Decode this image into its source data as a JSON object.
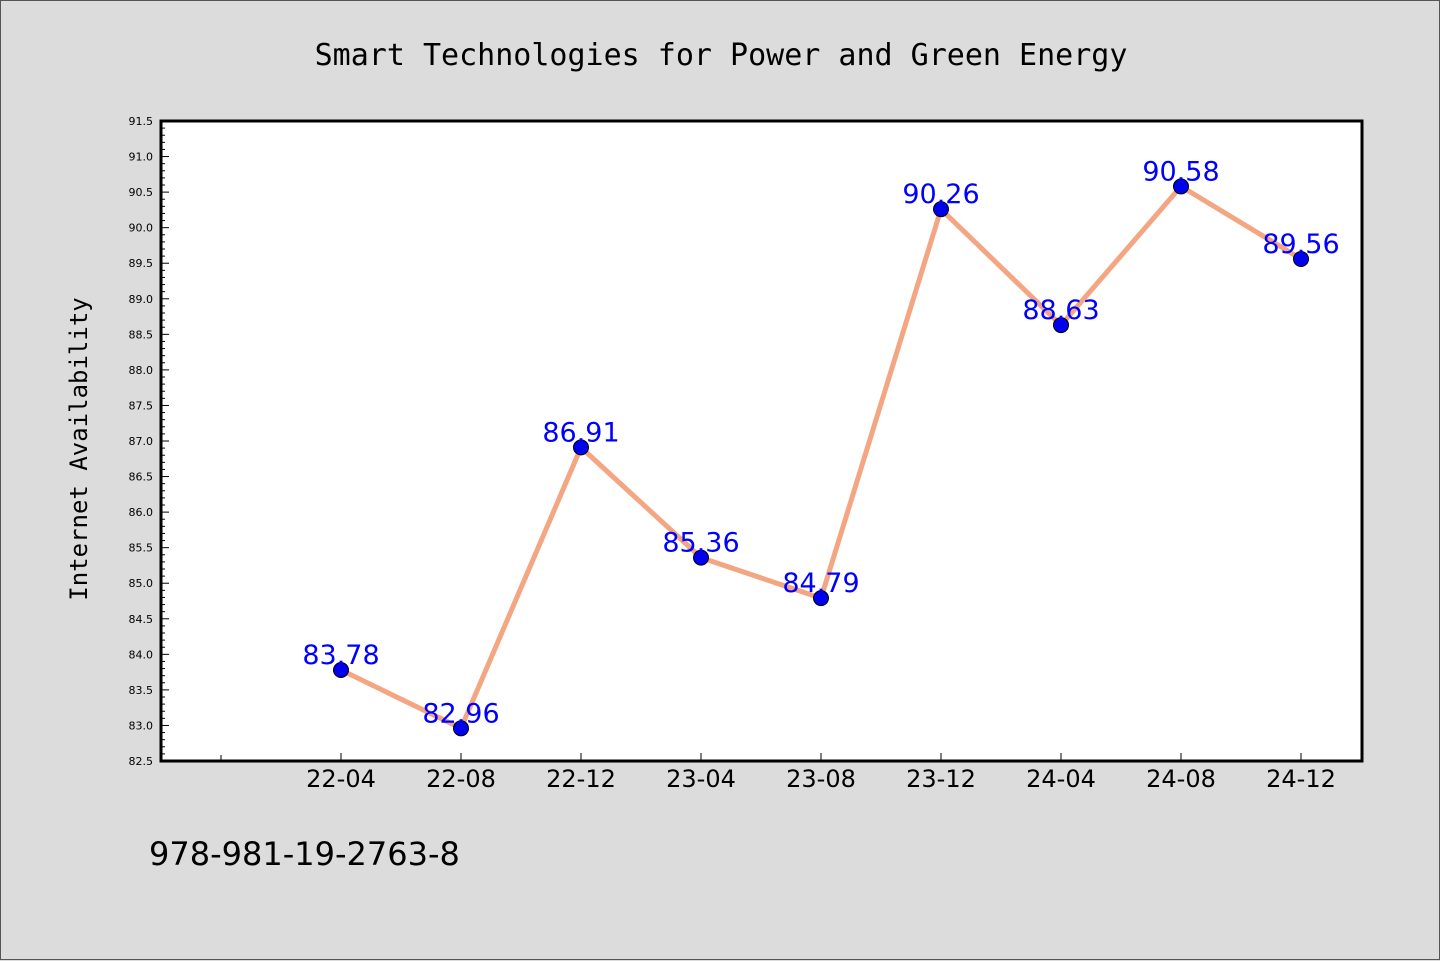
{
  "footnote": "978-981-19-2763-8",
  "chart_data": {
    "type": "line",
    "title": "Smart Technologies for Power and Green Energy",
    "xlabel": "",
    "ylabel": "Internet Availability",
    "categories": [
      "22-04",
      "22-08",
      "22-12",
      "23-04",
      "23-08",
      "23-12",
      "24-04",
      "24-08",
      "24-12"
    ],
    "series": [
      {
        "values": [
          83.78,
          82.96,
          86.91,
          85.36,
          84.79,
          90.26,
          88.63,
          90.58,
          89.56
        ]
      }
    ],
    "data_labels": [
      "83.78",
      "82.96",
      "86.91",
      "85.36",
      "84.79",
      "90.26",
      "88.63",
      "90.58",
      "89.56"
    ],
    "ylim": [
      82.5,
      91.5
    ],
    "yticks": [
      "82.5",
      "83.0",
      "83.5",
      "84.0",
      "84.5",
      "85.0",
      "85.5",
      "86.0",
      "86.5",
      "87.0",
      "87.5",
      "88.0",
      "88.5",
      "89.0",
      "89.5",
      "90.0",
      "90.5",
      "91.0",
      "91.5"
    ],
    "grid": false,
    "legend": "none",
    "colors": {
      "line": "#f4a582",
      "marker": "#0000ee",
      "label": "#0000ff",
      "background": "#dcdcdc",
      "plot_background": "#ffffff"
    }
  }
}
